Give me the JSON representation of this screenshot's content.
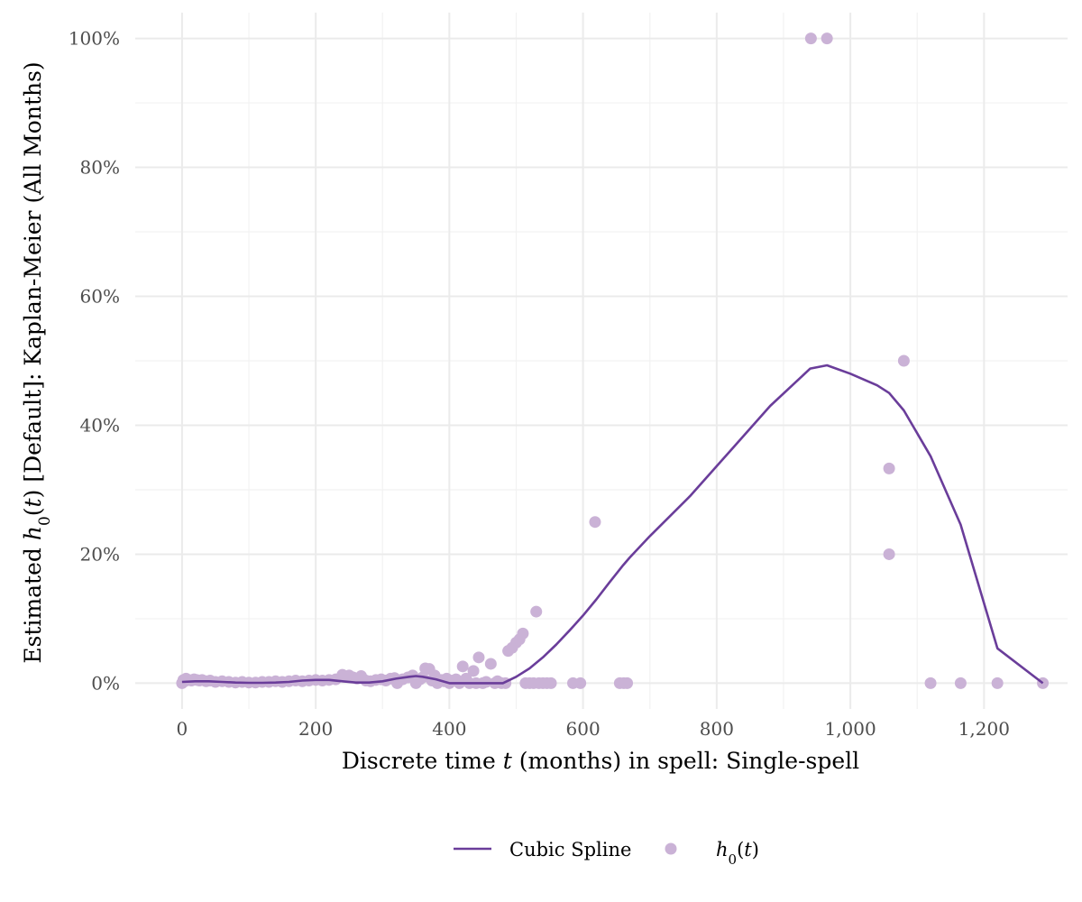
{
  "chart_data": {
    "type": "line",
    "xlabel": {
      "before": "Discrete time ",
      "var": "t",
      "after": " (months) in spell: Single-spell"
    },
    "ylabel": {
      "before": "Estimated  ",
      "h": "h",
      "sub": "0",
      "open": "(",
      "var": "t",
      "close": ")",
      "after": " [Default]:  Kaplan-Meier (All Months)"
    },
    "xlim": [
      -70,
      1325
    ],
    "ylim": [
      -0.04,
      1.04
    ],
    "x_ticks": [
      0,
      200,
      400,
      600,
      800,
      1000,
      1200
    ],
    "x_tick_labels": [
      "0",
      "200",
      "400",
      "600",
      "800",
      "1,000",
      "1,200"
    ],
    "y_ticks": [
      0,
      0.2,
      0.4,
      0.6,
      0.8,
      1.0
    ],
    "y_tick_labels": [
      "0%",
      "20%",
      "40%",
      "60%",
      "80%",
      "100%"
    ],
    "grid": true,
    "legend_position": "bottom",
    "colors": {
      "line": "#6a3d9a",
      "points": "#cab2d6"
    },
    "series": [
      {
        "name": "Cubic Spline",
        "kind": "line",
        "x": [
          0,
          20,
          40,
          60,
          80,
          100,
          120,
          140,
          160,
          180,
          200,
          210,
          220,
          240,
          260,
          280,
          300,
          320,
          340,
          350,
          360,
          380,
          400,
          420,
          440,
          460,
          480,
          500,
          520,
          540,
          560,
          580,
          600,
          620,
          640,
          660,
          670,
          700,
          760,
          820,
          880,
          940,
          965,
          1000,
          1040,
          1058,
          1080,
          1120,
          1165,
          1220,
          1288
        ],
        "y": [
          0.002,
          0.003,
          0.003,
          0.002,
          0.001,
          0.0005,
          0.0005,
          0.001,
          0.002,
          0.004,
          0.005,
          0.005,
          0.005,
          0.003,
          0.001,
          0.001,
          0.003,
          0.007,
          0.01,
          0.011,
          0.01,
          0.006,
          0.0,
          0.0,
          0.0,
          0.0,
          0.0,
          0.01,
          0.023,
          0.04,
          0.06,
          0.082,
          0.105,
          0.13,
          0.157,
          0.183,
          0.195,
          0.228,
          0.29,
          0.36,
          0.43,
          0.488,
          0.493,
          0.48,
          0.462,
          0.45,
          0.423,
          0.352,
          0.246,
          0.054,
          0.0
        ]
      },
      {
        "name": "h0(t)",
        "kind": "scatter",
        "points": [
          [
            0,
            0.0
          ],
          [
            2,
            0.005
          ],
          [
            4,
            0.003
          ],
          [
            6,
            0.007
          ],
          [
            10,
            0.005
          ],
          [
            14,
            0.004
          ],
          [
            18,
            0.006
          ],
          [
            22,
            0.005
          ],
          [
            26,
            0.004
          ],
          [
            30,
            0.005
          ],
          [
            36,
            0.003
          ],
          [
            42,
            0.004
          ],
          [
            50,
            0.002
          ],
          [
            60,
            0.003
          ],
          [
            70,
            0.002
          ],
          [
            80,
            0.001
          ],
          [
            90,
            0.002
          ],
          [
            100,
            0.001
          ],
          [
            110,
            0.001
          ],
          [
            120,
            0.002
          ],
          [
            130,
            0.002
          ],
          [
            140,
            0.003
          ],
          [
            150,
            0.002
          ],
          [
            160,
            0.003
          ],
          [
            170,
            0.004
          ],
          [
            180,
            0.003
          ],
          [
            190,
            0.004
          ],
          [
            200,
            0.005
          ],
          [
            210,
            0.004
          ],
          [
            220,
            0.005
          ],
          [
            230,
            0.006
          ],
          [
            240,
            0.013
          ],
          [
            245,
            0.01
          ],
          [
            250,
            0.012
          ],
          [
            256,
            0.009
          ],
          [
            262,
            0.007
          ],
          [
            268,
            0.011
          ],
          [
            275,
            0.004
          ],
          [
            282,
            0.003
          ],
          [
            290,
            0.005
          ],
          [
            298,
            0.006
          ],
          [
            305,
            0.004
          ],
          [
            312,
            0.007
          ],
          [
            318,
            0.008
          ],
          [
            322,
            0.0
          ],
          [
            330,
            0.006
          ],
          [
            338,
            0.009
          ],
          [
            345,
            0.012
          ],
          [
            350,
            0.0
          ],
          [
            356,
            0.006
          ],
          [
            360,
            0.009
          ],
          [
            364,
            0.023
          ],
          [
            370,
            0.022
          ],
          [
            374,
            0.004
          ],
          [
            378,
            0.012
          ],
          [
            382,
            0.0
          ],
          [
            388,
            0.005
          ],
          [
            392,
            0.003
          ],
          [
            396,
            0.007
          ],
          [
            400,
            0.0
          ],
          [
            405,
            0.004
          ],
          [
            410,
            0.006
          ],
          [
            415,
            0.0
          ],
          [
            420,
            0.026
          ],
          [
            425,
            0.007
          ],
          [
            430,
            0.0
          ],
          [
            436,
            0.019
          ],
          [
            440,
            0.0
          ],
          [
            444,
            0.04
          ],
          [
            450,
            0.0
          ],
          [
            455,
            0.002
          ],
          [
            462,
            0.03
          ],
          [
            468,
            0.0
          ],
          [
            472,
            0.003
          ],
          [
            478,
            0.0
          ],
          [
            484,
            0.0
          ],
          [
            488,
            0.05
          ],
          [
            494,
            0.055
          ],
          [
            500,
            0.063
          ],
          [
            505,
            0.068
          ],
          [
            510,
            0.077
          ],
          [
            514,
            0.0
          ],
          [
            520,
            0.0
          ],
          [
            526,
            0.0
          ],
          [
            530,
            0.111
          ],
          [
            534,
            0.0
          ],
          [
            540,
            0.0
          ],
          [
            546,
            0.0
          ],
          [
            552,
            0.0
          ],
          [
            585,
            0.0
          ],
          [
            596,
            0.0
          ],
          [
            618,
            0.25
          ],
          [
            655,
            0.0
          ],
          [
            661,
            0.0
          ],
          [
            666,
            0.0
          ],
          [
            941,
            1.0
          ],
          [
            965,
            1.0
          ],
          [
            1058,
            0.333
          ],
          [
            1058,
            0.2
          ],
          [
            1080,
            0.5
          ],
          [
            1120,
            0.0
          ],
          [
            1165,
            0.0
          ],
          [
            1220,
            0.0
          ],
          [
            1288,
            0.0
          ]
        ]
      }
    ],
    "legend": {
      "line_label": "Cubic Spline",
      "point_label_h": "h",
      "point_label_sub": "0",
      "point_label_open": "(",
      "point_label_var": "t",
      "point_label_close": ")"
    }
  }
}
